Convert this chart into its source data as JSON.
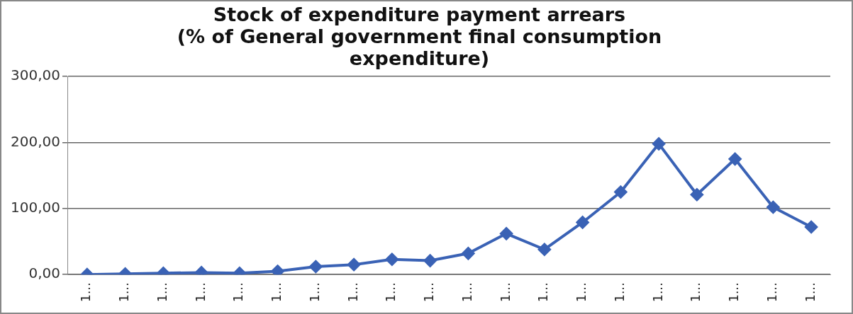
{
  "chart_data": {
    "type": "line",
    "title": "Stock of expenditure payment arrears\n(% of General government final consumption\nexpenditure)",
    "categories": [
      "1…",
      "1…",
      "1…",
      "1…",
      "1…",
      "1…",
      "1…",
      "1…",
      "1…",
      "1…",
      "1…",
      "1…",
      "1…",
      "1…",
      "1…",
      "1…",
      "1…",
      "1…",
      "1…",
      "1…"
    ],
    "series": [
      {
        "color": "#3a62b5",
        "values": [
          0,
          1,
          2,
          3,
          2,
          5,
          12,
          15,
          23,
          21,
          32,
          62,
          38,
          79,
          125,
          198,
          121,
          175,
          102,
          72
        ]
      }
    ],
    "ylim": [
      0,
      300
    ],
    "yticks": [
      {
        "value": 0,
        "label": "0,00"
      },
      {
        "value": 100,
        "label": "100,00"
      },
      {
        "value": 200,
        "label": "200,00"
      },
      {
        "value": 300,
        "label": "300,00"
      }
    ],
    "grid": "y",
    "legend": false,
    "marker": "diamond",
    "line_style": "solid"
  }
}
